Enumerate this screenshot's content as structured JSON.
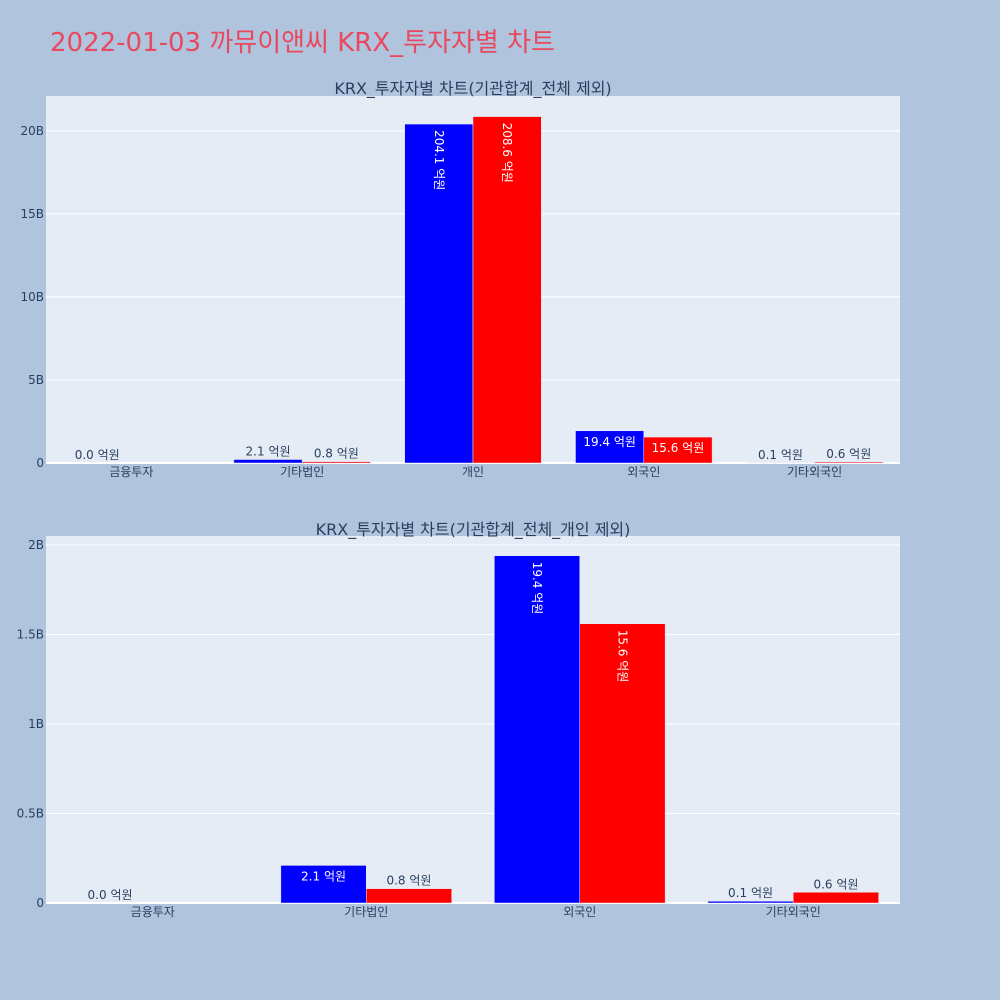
{
  "page_title": "2022-01-03 까뮤이앤씨 KRX_투자자별 차트",
  "colors": {
    "background": "#b0c4de",
    "plot_bg": "#e5ecf6",
    "title": "#e8495f",
    "text": "#2a3f5f",
    "series_a": "#0000ff",
    "series_b": "#ff0000"
  },
  "chart_data": [
    {
      "type": "bar",
      "title": "KRX_투자자별 차트(기관합계_전체 제외)",
      "categories": [
        "금융투자",
        "기타법인",
        "개인",
        "외국인",
        "기타외국인"
      ],
      "series": [
        {
          "color": "#0000ff",
          "values": [
            0.0,
            0.21,
            20.41,
            1.94,
            0.01
          ],
          "labels": [
            "0.0 억원",
            "2.1 억원",
            "204.1 억원",
            "19.4 억원",
            "0.1 억원"
          ]
        },
        {
          "color": "#ff0000",
          "values": [
            0.0,
            0.08,
            20.86,
            1.56,
            0.06
          ],
          "labels": [
            "",
            "0.8 억원",
            "208.6 억원",
            "15.6 억원",
            "0.6 억원"
          ]
        }
      ],
      "y_ticks": [
        {
          "value": 0,
          "label": "0"
        },
        {
          "value": 5,
          "label": "5B"
        },
        {
          "value": 10,
          "label": "10B"
        },
        {
          "value": 15,
          "label": "15B"
        },
        {
          "value": 20,
          "label": "20B"
        }
      ],
      "ylim": [
        0,
        22.1
      ],
      "grid": true,
      "legend": "none"
    },
    {
      "type": "bar",
      "title": "KRX_투자자별 차트(기관합계_전체_개인 제외)",
      "categories": [
        "금융투자",
        "기타법인",
        "외국인",
        "기타외국인"
      ],
      "series": [
        {
          "color": "#0000ff",
          "values": [
            0.0,
            0.21,
            1.94,
            0.01
          ],
          "labels": [
            "0.0 억원",
            "2.1 억원",
            "19.4 억원",
            "0.1 억원"
          ]
        },
        {
          "color": "#ff0000",
          "values": [
            0.0,
            0.08,
            1.56,
            0.06
          ],
          "labels": [
            "",
            "0.8 억원",
            "15.6 억원",
            "0.6 억원"
          ]
        }
      ],
      "y_ticks": [
        {
          "value": 0,
          "label": "0"
        },
        {
          "value": 0.5,
          "label": "0.5B"
        },
        {
          "value": 1,
          "label": "1B"
        },
        {
          "value": 1.5,
          "label": "1.5B"
        },
        {
          "value": 2,
          "label": "2B"
        }
      ],
      "ylim": [
        0,
        2.05
      ],
      "grid": true,
      "legend": "none"
    }
  ]
}
